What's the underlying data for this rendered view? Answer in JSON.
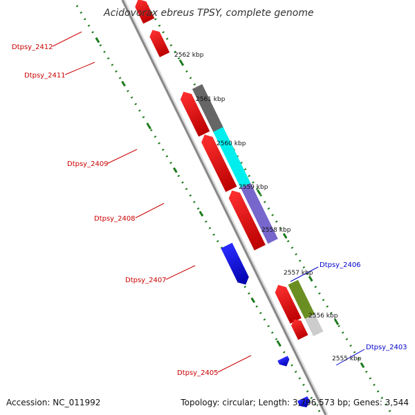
{
  "title": "Acidovorax ebreus TPSY, complete genome",
  "footer": {
    "accession": "Accession: NC_011992",
    "topology": "Topology: circular; Length: 3,796,573 bp; Genes: 3,544"
  },
  "ticks": [
    "2562 kbp",
    "2561 kbp",
    "2560 kbp",
    "2559 kbp",
    "2558 kbp",
    "2557 kbp",
    "2556 kbp",
    "2555 kbp"
  ],
  "colors": {
    "reverse_strand": "#ff0000",
    "forward_strand": "#0000ff",
    "backbone": "#888888",
    "ruler": "#1a7a1a",
    "label_reverse": "#cc0000",
    "label_forward": "#0000cc",
    "cog_grey": "#666666",
    "cog_cyan": "#00eeee",
    "cog_purple": "#7766cc",
    "cog_olive": "#6b8e23",
    "cog_lightgrey": "#cccccc"
  },
  "genes": [
    {
      "label": "Dtpsy_2412",
      "strand": "reverse"
    },
    {
      "label": "Dtpsy_2411",
      "strand": "reverse"
    },
    {
      "label": "Dtpsy_2409",
      "strand": "reverse"
    },
    {
      "label": "Dtpsy_2408",
      "strand": "reverse"
    },
    {
      "label": "Dtpsy_2407",
      "strand": "reverse"
    },
    {
      "label": "Dtpsy_2406",
      "strand": "forward"
    },
    {
      "label": "Dtpsy_2405",
      "strand": "reverse"
    },
    {
      "label": "Dtpsy_2403",
      "strand": "forward"
    }
  ]
}
